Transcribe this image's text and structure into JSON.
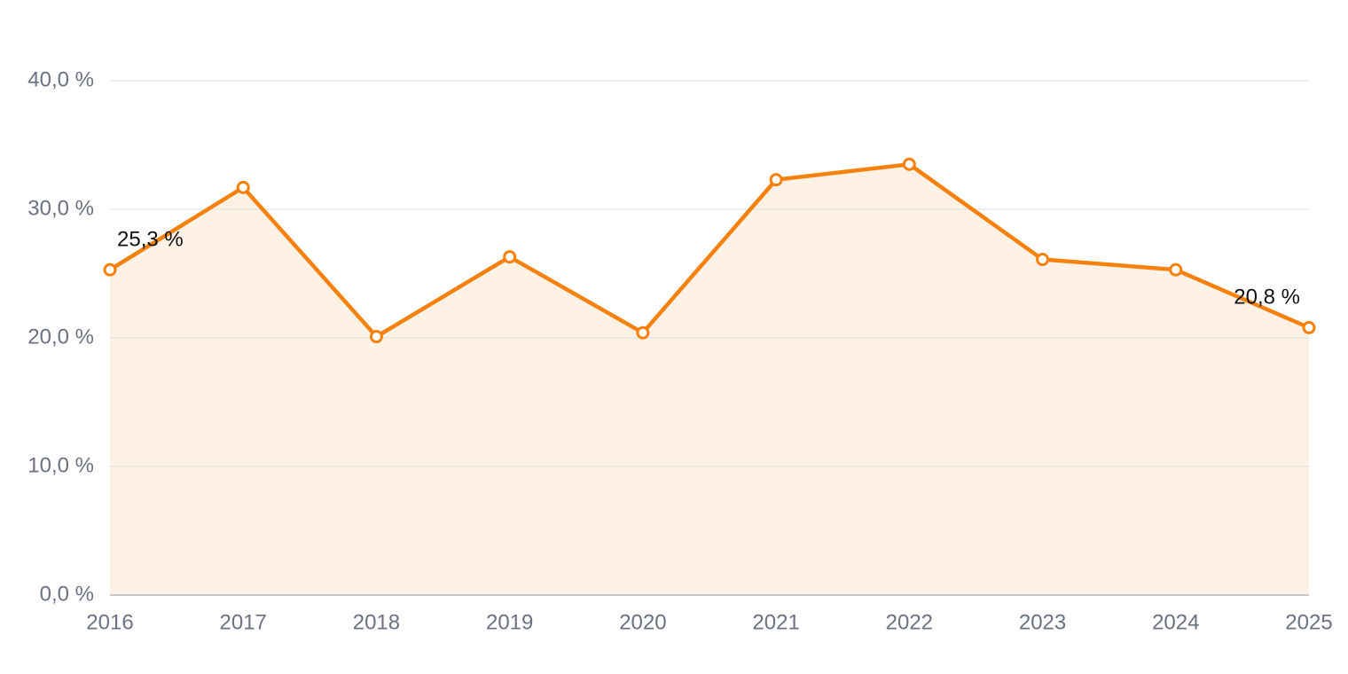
{
  "chart_data": {
    "type": "line",
    "categories": [
      "2016",
      "2017",
      "2018",
      "2019",
      "2020",
      "2021",
      "2022",
      "2023",
      "2024",
      "2025"
    ],
    "values": [
      25.3,
      31.7,
      20.1,
      26.3,
      20.4,
      32.3,
      33.5,
      26.1,
      25.3,
      20.8
    ],
    "value_labels": [
      "25,3 %",
      null,
      null,
      null,
      null,
      null,
      null,
      null,
      null,
      "20,8 %"
    ],
    "color": "#f7810d",
    "area_color": "#fef1e5",
    "ylim": [
      0,
      40
    ],
    "yticks": [
      {
        "value": 0,
        "label": "0,0 %"
      },
      {
        "value": 10,
        "label": "10,0 %"
      },
      {
        "value": 20,
        "label": "20,0 %"
      },
      {
        "value": 30,
        "label": "30,0 %"
      },
      {
        "value": 40,
        "label": "40,0 %"
      }
    ],
    "grid": true
  }
}
